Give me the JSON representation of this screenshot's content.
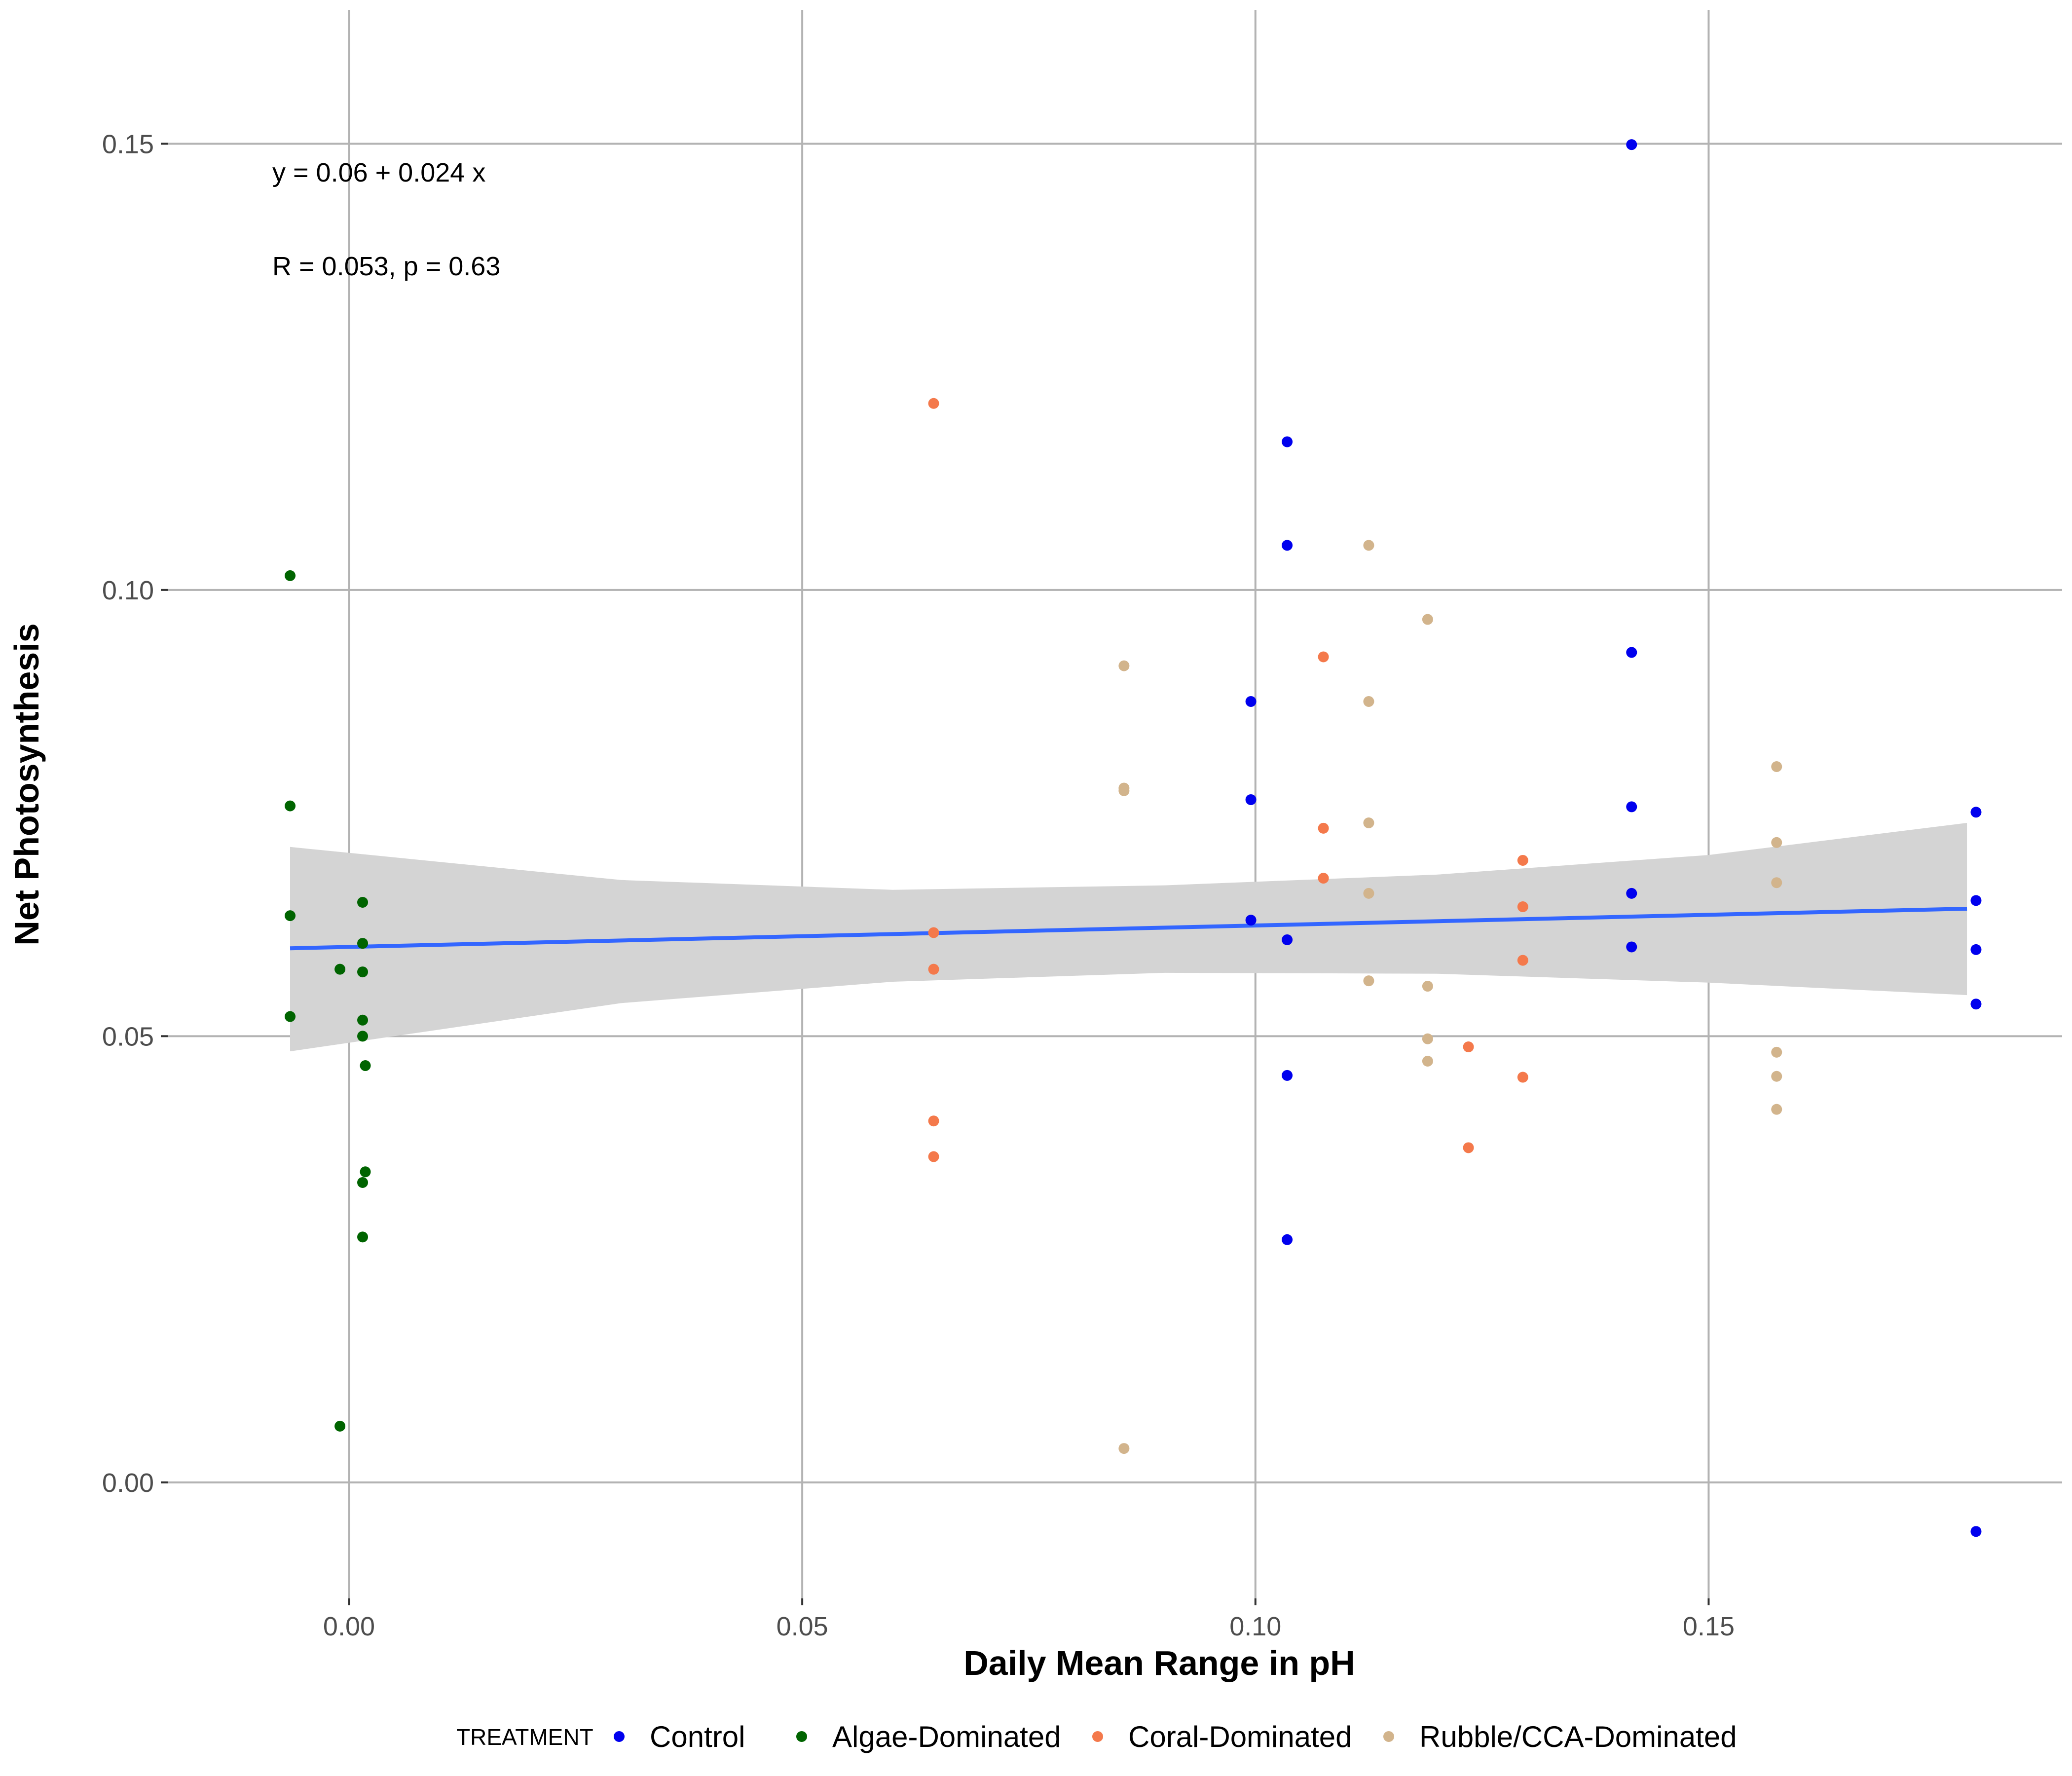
{
  "chart_data": {
    "type": "scatter",
    "xlabel": "Daily Mean Range in pH",
    "ylabel": "Net Photosynthesis",
    "xlim": [
      -0.02,
      0.189
    ],
    "ylim": [
      -0.013,
      0.165
    ],
    "x_ticks": [
      0.0,
      0.05,
      0.1,
      0.15
    ],
    "x_tick_labels": [
      "0.00",
      "0.05",
      "0.10",
      "0.15"
    ],
    "y_ticks": [
      0.0,
      0.05,
      0.1,
      0.15
    ],
    "y_tick_labels": [
      "0.00",
      "0.05",
      "0.10",
      "0.15"
    ],
    "grid": true,
    "legend": {
      "title": "TREATMENT",
      "position": "bottom"
    },
    "annotations": {
      "equation": "y = 0.06 + 0.024 x",
      "stats": "R = 0.053, p = 0.63"
    },
    "regression": {
      "intercept": 0.06,
      "slope": 0.024,
      "x_range": [
        -0.0065,
        0.1785
      ],
      "color": "#3366FF",
      "band_color": "#D4D4D4",
      "band": {
        "x": [
          -0.0065,
          0.03,
          0.06,
          0.09,
          0.12,
          0.15,
          0.1785
        ],
        "lower": [
          0.0483,
          0.0537,
          0.0561,
          0.0571,
          0.057,
          0.056,
          0.0546
        ],
        "upper": [
          0.0712,
          0.0675,
          0.0664,
          0.0669,
          0.0681,
          0.0703,
          0.0739
        ]
      }
    },
    "series": [
      {
        "name": "Control",
        "color": "#0000EE",
        "points": [
          {
            "x": 0.1415,
            "y": 0.1499
          },
          {
            "x": 0.1035,
            "y": 0.1166
          },
          {
            "x": 0.1035,
            "y": 0.105
          },
          {
            "x": 0.1415,
            "y": 0.093
          },
          {
            "x": 0.0995,
            "y": 0.0875
          },
          {
            "x": 0.0995,
            "y": 0.0765
          },
          {
            "x": 0.1415,
            "y": 0.0757
          },
          {
            "x": 0.1795,
            "y": 0.0751
          },
          {
            "x": 0.1415,
            "y": 0.066
          },
          {
            "x": 0.1795,
            "y": 0.0652
          },
          {
            "x": 0.0995,
            "y": 0.063
          },
          {
            "x": 0.1035,
            "y": 0.0608
          },
          {
            "x": 0.1415,
            "y": 0.06
          },
          {
            "x": 0.1795,
            "y": 0.0597
          },
          {
            "x": 0.1795,
            "y": 0.0536
          },
          {
            "x": 0.1035,
            "y": 0.0456
          },
          {
            "x": 0.1035,
            "y": 0.0272
          },
          {
            "x": 0.1795,
            "y": -0.0055
          }
        ]
      },
      {
        "name": "Algae-Dominated",
        "color": "#006400",
        "points": [
          {
            "x": -0.0065,
            "y": 0.1016
          },
          {
            "x": -0.0065,
            "y": 0.0758
          },
          {
            "x": -0.0065,
            "y": 0.0635
          },
          {
            "x": -0.0065,
            "y": 0.0522
          },
          {
            "x": 0.0015,
            "y": 0.065
          },
          {
            "x": 0.0015,
            "y": 0.0604
          },
          {
            "x": -0.001,
            "y": 0.0575
          },
          {
            "x": 0.0015,
            "y": 0.0572
          },
          {
            "x": 0.0015,
            "y": 0.0518
          },
          {
            "x": 0.0015,
            "y": 0.05
          },
          {
            "x": 0.0018,
            "y": 0.0467
          },
          {
            "x": 0.0018,
            "y": 0.0348
          },
          {
            "x": 0.0015,
            "y": 0.0336
          },
          {
            "x": 0.0015,
            "y": 0.0275
          },
          {
            "x": -0.001,
            "y": 0.0063
          }
        ]
      },
      {
        "name": "Coral-Dominated",
        "color": "#F4794B",
        "points": [
          {
            "x": 0.0645,
            "y": 0.1209
          },
          {
            "x": 0.1075,
            "y": 0.0925
          },
          {
            "x": 0.1075,
            "y": 0.0733
          },
          {
            "x": 0.1295,
            "y": 0.0697
          },
          {
            "x": 0.1075,
            "y": 0.0677
          },
          {
            "x": 0.1295,
            "y": 0.0645
          },
          {
            "x": 0.0645,
            "y": 0.0616
          },
          {
            "x": 0.1295,
            "y": 0.0585
          },
          {
            "x": 0.0645,
            "y": 0.0575
          },
          {
            "x": 0.1235,
            "y": 0.0488
          },
          {
            "x": 0.1295,
            "y": 0.0454
          },
          {
            "x": 0.0645,
            "y": 0.0405
          },
          {
            "x": 0.0645,
            "y": 0.0365
          },
          {
            "x": 0.1235,
            "y": 0.0375
          }
        ]
      },
      {
        "name": "Rubble/CCA-Dominated",
        "color": "#D2B48C",
        "points": [
          {
            "x": 0.1125,
            "y": 0.105
          },
          {
            "x": 0.119,
            "y": 0.0967
          },
          {
            "x": 0.0855,
            "y": 0.0915
          },
          {
            "x": 0.1125,
            "y": 0.0875
          },
          {
            "x": 0.1575,
            "y": 0.0802
          },
          {
            "x": 0.0855,
            "y": 0.0775
          },
          {
            "x": 0.0855,
            "y": 0.0778
          },
          {
            "x": 0.1125,
            "y": 0.0739
          },
          {
            "x": 0.1575,
            "y": 0.0717
          },
          {
            "x": 0.1575,
            "y": 0.0672
          },
          {
            "x": 0.1125,
            "y": 0.066
          },
          {
            "x": 0.1125,
            "y": 0.0562
          },
          {
            "x": 0.119,
            "y": 0.0556
          },
          {
            "x": 0.119,
            "y": 0.0497
          },
          {
            "x": 0.1575,
            "y": 0.0482
          },
          {
            "x": 0.119,
            "y": 0.0472
          },
          {
            "x": 0.1575,
            "y": 0.0455
          },
          {
            "x": 0.1575,
            "y": 0.0418
          },
          {
            "x": 0.0855,
            "y": 0.0038
          }
        ]
      }
    ]
  }
}
